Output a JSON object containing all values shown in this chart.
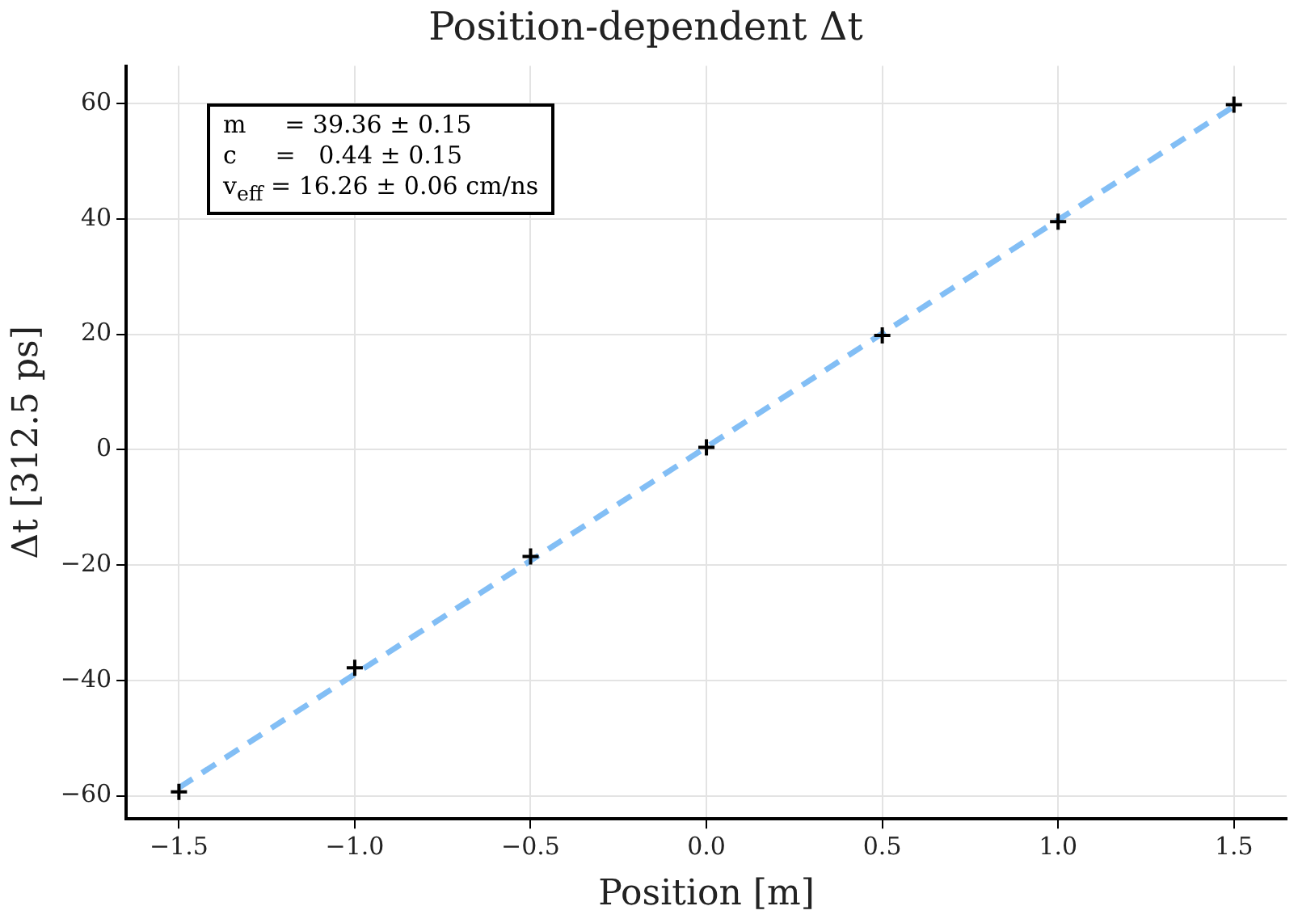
{
  "chart_data": {
    "type": "scatter",
    "title": "Position-dependent Δt",
    "xlabel": "Position [m]",
    "ylabel": "Δt [312.5 ps]",
    "xlim": [
      -1.65,
      1.65
    ],
    "ylim": [
      -64,
      66.5
    ],
    "xticks": [
      {
        "value": -1.5,
        "label": "−1.5"
      },
      {
        "value": -1.0,
        "label": "−1.0"
      },
      {
        "value": -0.5,
        "label": "−0.5"
      },
      {
        "value": 0.0,
        "label": "0.0"
      },
      0.5,
      {
        "value": 1.0,
        "label": "1.0"
      },
      1.5
    ],
    "yticks": [
      {
        "value": -60,
        "label": "−60"
      },
      {
        "value": -40,
        "label": "−40"
      },
      {
        "value": -20,
        "label": "−20"
      },
      0,
      20,
      40,
      60
    ],
    "grid": true,
    "legend": false,
    "annotations": [
      "m     = 39.36 ± 0.15",
      "c     =   0.44 ± 0.15",
      "v$_{eff}$ = 16.26 ± 0.06 cm/ns"
    ],
    "series": [
      {
        "type": "scatter",
        "color": "#000000",
        "marker": "cross",
        "x": [
          -1.5,
          -1.0,
          -0.5,
          0.0,
          0.5,
          1.0,
          1.5
        ],
        "values": [
          -59.3,
          -37.8,
          -18.5,
          0.4,
          19.8,
          39.5,
          59.8
        ]
      },
      {
        "type": "line",
        "color": "#82bef5",
        "line_style": "dashed",
        "marker": "none",
        "x": [
          -1.5,
          1.5
        ],
        "values": [
          -58.6,
          59.5
        ]
      }
    ]
  }
}
